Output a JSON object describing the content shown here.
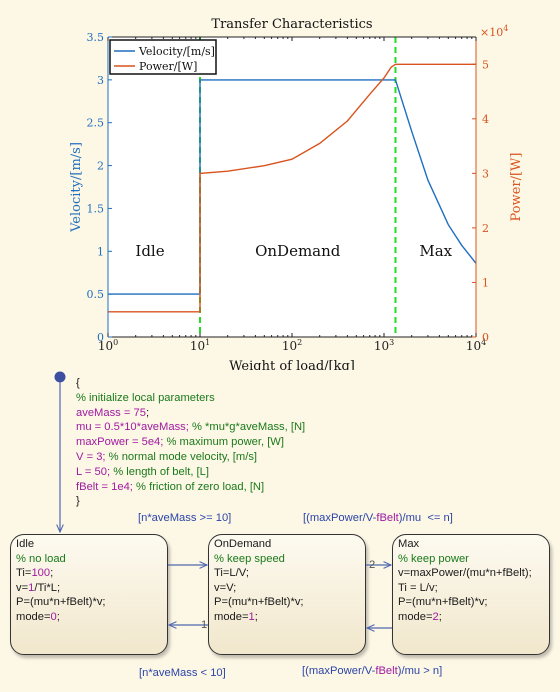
{
  "chart_data": {
    "type": "line",
    "title": "Transfer Characteristics",
    "xlabel": "Weight of load/[kg]",
    "ylabel_left": "Velocity/[m/s]",
    "ylabel_right": "Power/[W]",
    "x_scale": "log",
    "xlim": [
      1,
      10000
    ],
    "ylim_left": [
      0,
      3.5
    ],
    "ylim_right": [
      0,
      55000
    ],
    "right_axis_exponent": "×10^4",
    "x_ticks": [
      "10^0",
      "10^1",
      "10^2",
      "10^3",
      "10^4"
    ],
    "y_ticks_left": [
      "0",
      "0.5",
      "1",
      "1.5",
      "2",
      "2.5",
      "3",
      "3.5"
    ],
    "y_ticks_right": [
      "0",
      "1",
      "2",
      "3",
      "4",
      "5"
    ],
    "legend": {
      "position": "top-left",
      "entries": [
        "Velocity/[m/s]",
        "Power/[W]"
      ]
    },
    "grid": false,
    "series": [
      {
        "name": "Velocity/[m/s]",
        "axis": "left",
        "color": "#1f6fbf",
        "x": [
          1,
          10,
          10,
          1333,
          2000,
          3000,
          5000,
          7000,
          10000
        ],
        "y": [
          0.5,
          0.5,
          3.0,
          3.0,
          2.4,
          1.83,
          1.31,
          1.07,
          0.86
        ]
      },
      {
        "name": "Power/[W]",
        "axis": "right",
        "color": "#d9541e",
        "x": [
          1,
          10,
          10,
          20,
          50,
          100,
          200,
          400,
          700,
          1000,
          1200,
          1333,
          1333,
          10000
        ],
        "y": [
          4625,
          4625,
          30000,
          30400,
          31400,
          32600,
          35500,
          39600,
          44500,
          47500,
          49500,
          50000,
          50000,
          50000
        ]
      }
    ],
    "region_dividers_x": [
      10,
      1333
    ],
    "region_labels": [
      "Idle",
      "OnDemand",
      "Max"
    ]
  },
  "diagram": {
    "init_lines": [
      [
        {
          "t": "{",
          "c": "black"
        }
      ],
      [
        {
          "t": "% initialize local parameters",
          "c": "green"
        }
      ],
      [
        {
          "t": "aveMass = ",
          "c": "purple"
        },
        {
          "t": "75",
          "c": "purple"
        },
        {
          "t": ";",
          "c": "black"
        }
      ],
      [
        {
          "t": "mu = 0.5*10*aveMass; ",
          "c": "purple"
        },
        {
          "t": "% *mu*g*aveMass, [N]",
          "c": "green"
        }
      ],
      [
        {
          "t": "maxPower = 5e4; ",
          "c": "purple"
        },
        {
          "t": "% maximum power, [W]",
          "c": "green"
        }
      ],
      [
        {
          "t": "V = 3; ",
          "c": "purple"
        },
        {
          "t": "% normal mode velocity, [m/s]",
          "c": "green"
        }
      ],
      [
        {
          "t": "L = 50; ",
          "c": "purple"
        },
        {
          "t": "% length of belt, [L]",
          "c": "green"
        }
      ],
      [
        {
          "t": "fBelt = 1e4; ",
          "c": "purple"
        },
        {
          "t": "% friction of zero load, [N]",
          "c": "green"
        }
      ],
      [
        {
          "t": "}",
          "c": "black"
        }
      ]
    ],
    "states": [
      {
        "id": "idle",
        "lines": [
          [
            {
              "t": "Idle",
              "c": "black"
            }
          ],
          [
            {
              "t": "% no load",
              "c": "green"
            }
          ],
          [
            {
              "t": "Ti=",
              "c": "black"
            },
            {
              "t": "100",
              "c": "purple"
            },
            {
              "t": ";",
              "c": "black"
            }
          ],
          [
            {
              "t": "v=",
              "c": "black"
            },
            {
              "t": "1",
              "c": "purple"
            },
            {
              "t": "/Ti*L;",
              "c": "black"
            }
          ],
          [
            {
              "t": "P=(mu*n+fBelt)*v;",
              "c": "black"
            }
          ],
          [
            {
              "t": "mode=",
              "c": "black"
            },
            {
              "t": "0",
              "c": "purple"
            },
            {
              "t": ";",
              "c": "black"
            }
          ]
        ]
      },
      {
        "id": "ondemand",
        "lines": [
          [
            {
              "t": "OnDemand",
              "c": "black"
            }
          ],
          [
            {
              "t": "% keep speed",
              "c": "green"
            }
          ],
          [
            {
              "t": "Ti=L/V;",
              "c": "black"
            }
          ],
          [
            {
              "t": "v=V;",
              "c": "black"
            }
          ],
          [
            {
              "t": "P=(mu*n+fBelt)*v;",
              "c": "black"
            }
          ],
          [
            {
              "t": "mode=",
              "c": "black"
            },
            {
              "t": "1",
              "c": "purple"
            },
            {
              "t": ";",
              "c": "black"
            }
          ]
        ]
      },
      {
        "id": "max",
        "lines": [
          [
            {
              "t": "Max",
              "c": "black"
            }
          ],
          [
            {
              "t": "% keep power",
              "c": "green"
            }
          ],
          [
            {
              "t": "v=maxPower/(mu*n+fBelt);",
              "c": "black"
            }
          ],
          [
            {
              "t": "Ti = L/v;",
              "c": "black"
            }
          ],
          [
            {
              "t": "P=(mu*n+fBelt)*v;",
              "c": "black"
            }
          ],
          [
            {
              "t": "mode=",
              "c": "black"
            },
            {
              "t": "2",
              "c": "purple"
            },
            {
              "t": ";",
              "c": "black"
            }
          ]
        ]
      }
    ],
    "transitions": {
      "idle_to_ondemand": "[n*aveMass >= 10]",
      "ondemand_to_max": "[(maxPower/V-fBelt)/mu  <= n]",
      "ondemand_to_idle": "[n*aveMass < 10]",
      "max_to_ondemand": "[(maxPower/V-fBelt)/mu > n]",
      "priority_1": "1",
      "priority_2": "2"
    }
  }
}
